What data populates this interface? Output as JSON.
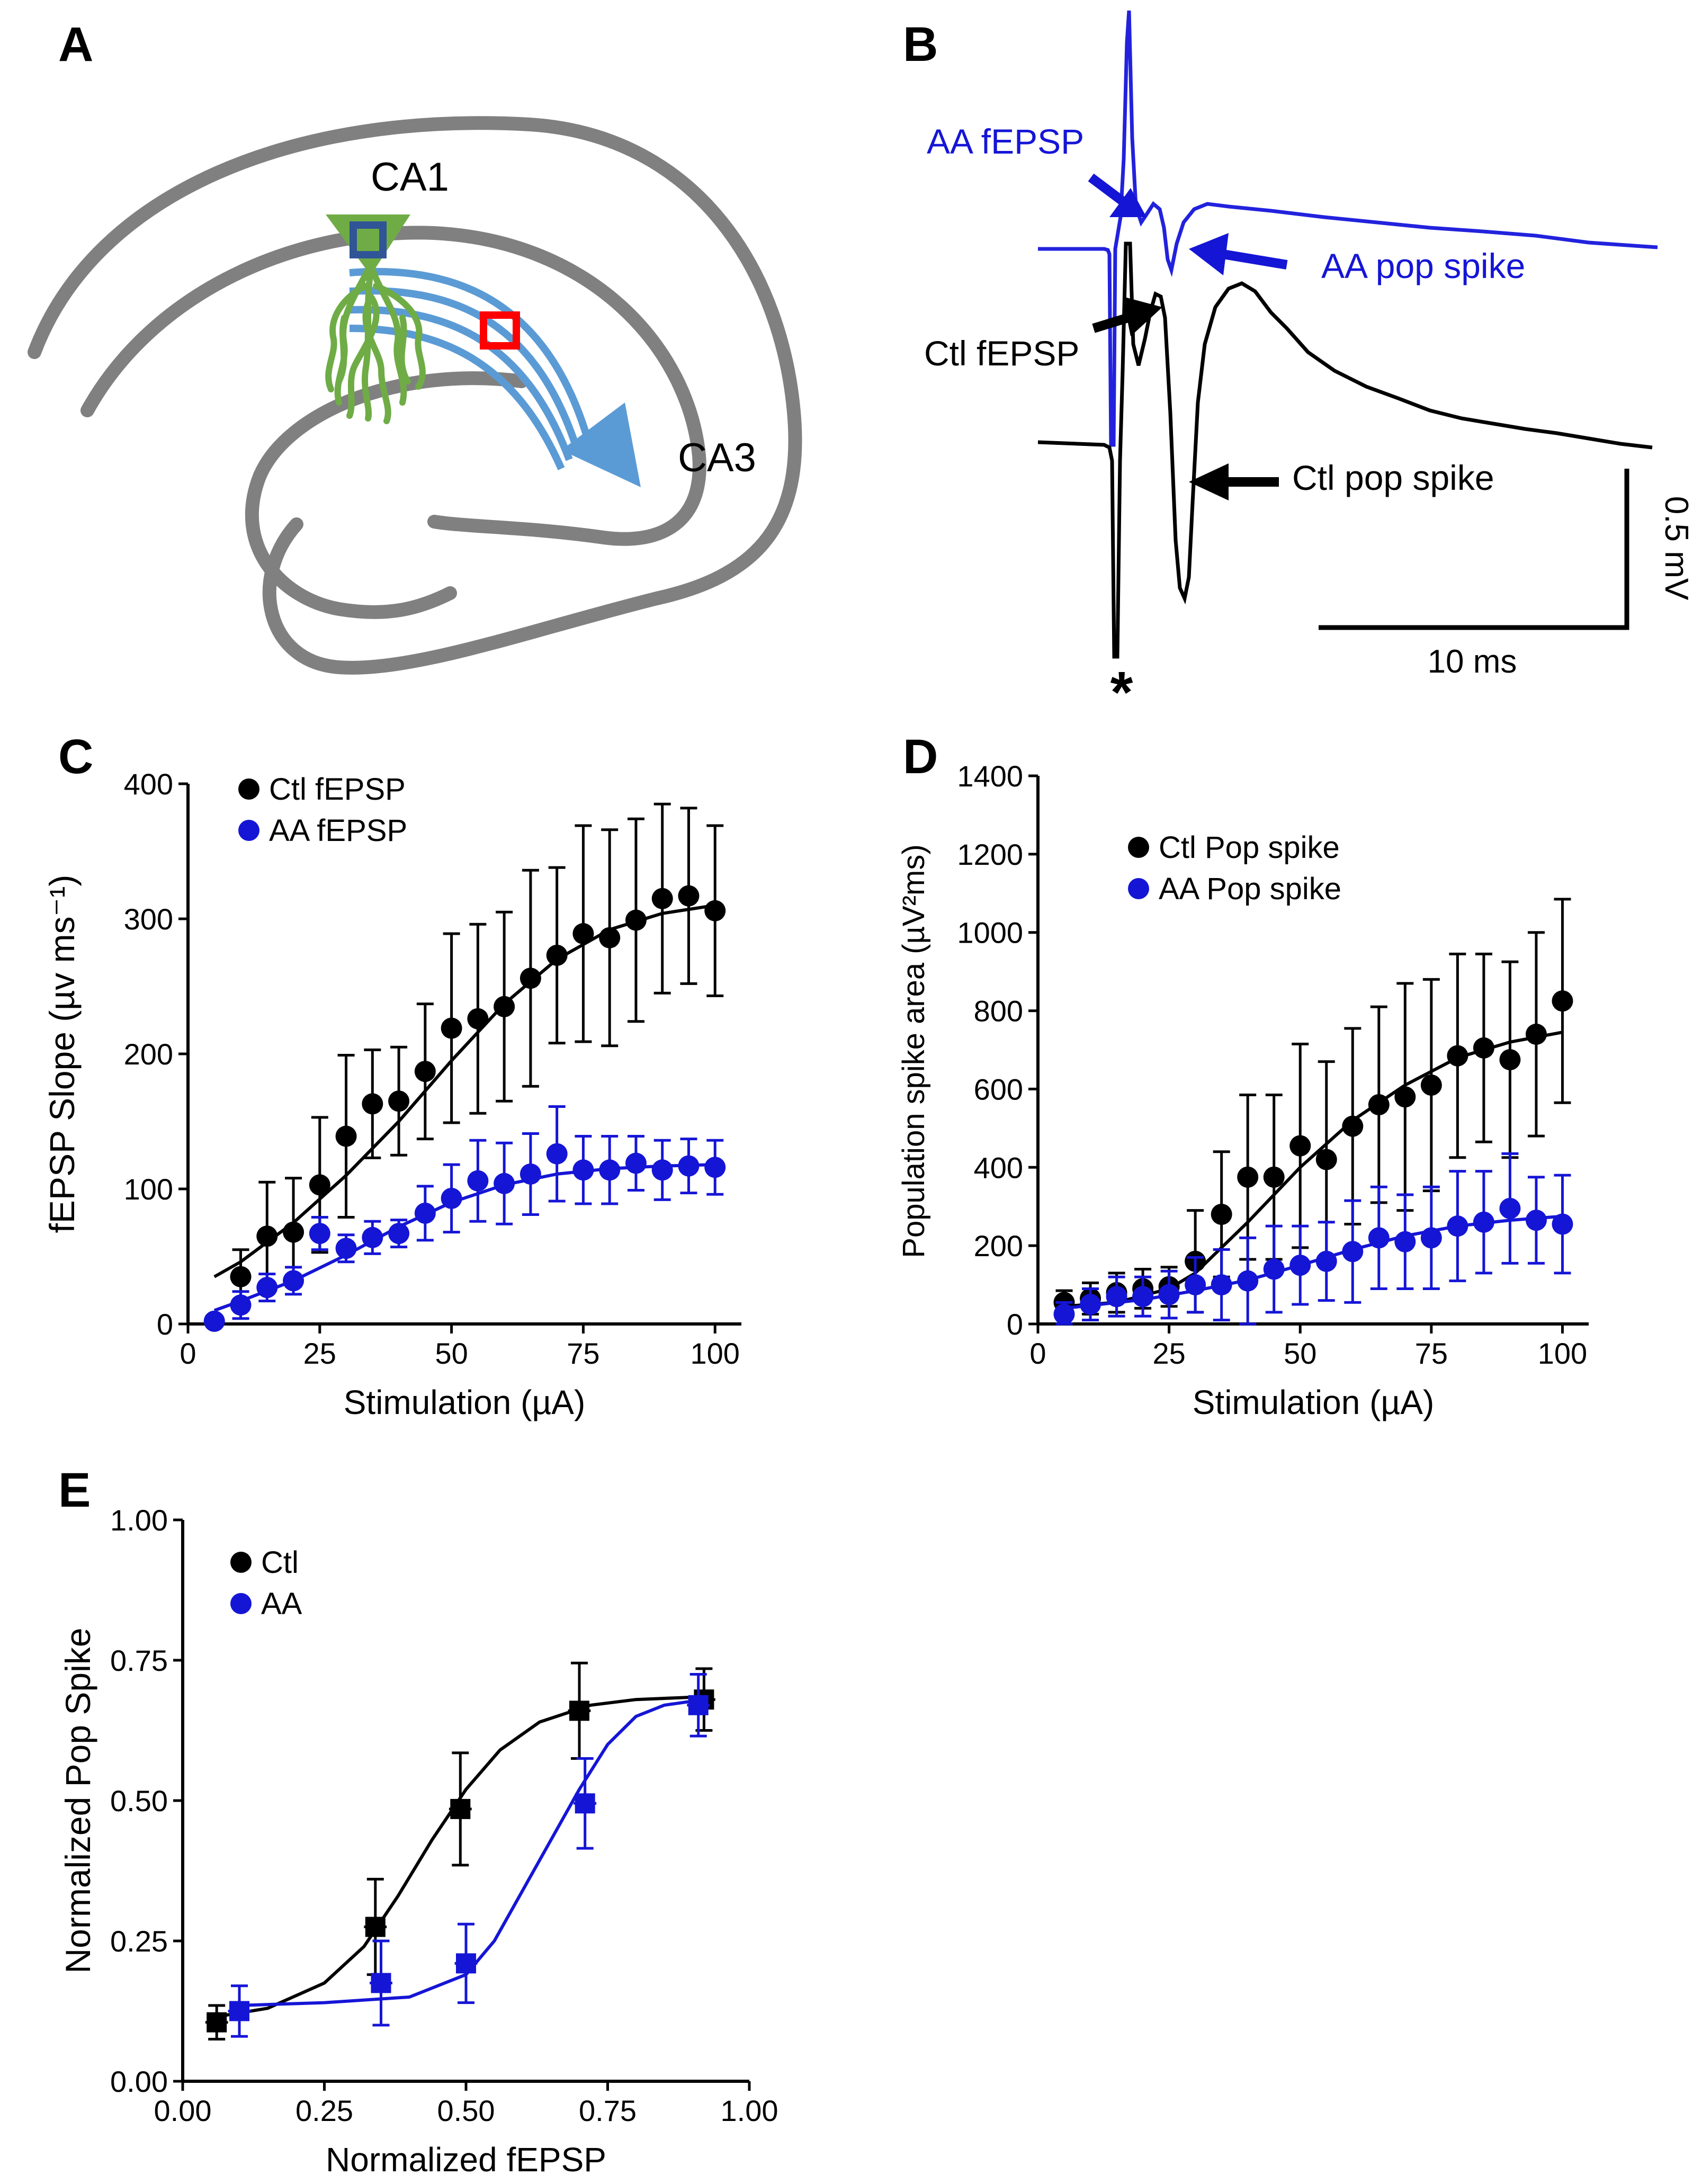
{
  "colors": {
    "ctl": "#000000",
    "aa": "#1515d6",
    "aa_trace": "#2222dd",
    "tissue": "#808080",
    "neuron": "#6fac46",
    "axon": "#5b9bd5",
    "marker_blue": "#2f5597",
    "marker_red": "#ff0000"
  },
  "panels": {
    "A": {
      "letter": "A",
      "ca1": "CA1",
      "ca3": "CA3"
    },
    "B": {
      "letter": "B",
      "aa_fepsp": "AA fEPSP",
      "aa_pop": "AA pop spike",
      "ctl_fepsp": "Ctl fEPSP",
      "ctl_pop": "Ctl pop spike",
      "scale_v": "0.5 mV",
      "scale_t": "10 ms",
      "stim": "*"
    },
    "C": {
      "letter": "C"
    },
    "D": {
      "letter": "D"
    },
    "E": {
      "letter": "E"
    }
  },
  "chart_data": [
    {
      "id": "C",
      "type": "scatter",
      "xlabel": "Stimulation (µA)",
      "ylabel": "fEPSP Slope (µv ms⁻¹)",
      "xlim": [
        0,
        105
      ],
      "ylim": [
        0,
        400
      ],
      "xticks": [
        0,
        25,
        50,
        75,
        100
      ],
      "yticks": [
        0,
        100,
        200,
        300,
        400
      ],
      "legend": "top-left",
      "series": [
        {
          "name": "Ctl fEPSP",
          "color": "#000000",
          "marker": "circle",
          "x": [
            5,
            10,
            15,
            20,
            25,
            30,
            35,
            40,
            45,
            50,
            55,
            60,
            65,
            70,
            75,
            80,
            85,
            90,
            95,
            100
          ],
          "y": [
            2,
            35,
            65,
            68,
            103,
            139,
            163,
            165,
            187,
            219,
            226,
            235,
            256,
            273,
            289,
            286,
            299,
            315,
            317,
            306
          ],
          "err": [
            3,
            20,
            40,
            40,
            50,
            60,
            40,
            40,
            50,
            70,
            70,
            70,
            80,
            65,
            80,
            80,
            75,
            70,
            65,
            63
          ],
          "fit": [
            [
              5,
              35
            ],
            [
              10,
              46
            ],
            [
              20,
              75
            ],
            [
              30,
              110
            ],
            [
              40,
              150
            ],
            [
              50,
              195
            ],
            [
              60,
              237
            ],
            [
              70,
              270
            ],
            [
              80,
              292
            ],
            [
              90,
              304
            ],
            [
              100,
              310
            ]
          ]
        },
        {
          "name": "AA fEPSP",
          "color": "#1515d6",
          "marker": "circle",
          "x": [
            5,
            10,
            15,
            20,
            25,
            30,
            35,
            40,
            45,
            50,
            55,
            60,
            65,
            70,
            75,
            80,
            85,
            90,
            95,
            100
          ],
          "y": [
            2,
            14,
            27,
            32,
            67,
            56,
            64,
            67,
            82,
            93,
            106,
            104,
            111,
            126,
            114,
            114,
            119,
            114,
            117,
            116
          ],
          "err": [
            3,
            10,
            10,
            10,
            12,
            10,
            12,
            10,
            20,
            25,
            30,
            30,
            30,
            35,
            25,
            25,
            20,
            22,
            20,
            20
          ],
          "fit": [
            [
              5,
              10
            ],
            [
              10,
              17
            ],
            [
              20,
              32
            ],
            [
              30,
              51
            ],
            [
              40,
              72
            ],
            [
              50,
              90
            ],
            [
              60,
              103
            ],
            [
              70,
              111
            ],
            [
              80,
              115
            ],
            [
              90,
              117
            ],
            [
              100,
              118
            ]
          ]
        }
      ]
    },
    {
      "id": "D",
      "type": "scatter",
      "xlabel": "Stimulation (µA)",
      "ylabel": "Population spike area (µV²ms)",
      "xlim": [
        0,
        105
      ],
      "ylim": [
        0,
        1400
      ],
      "xticks": [
        0,
        25,
        50,
        75,
        100
      ],
      "yticks": [
        0,
        200,
        400,
        600,
        800,
        1000,
        1200,
        1400
      ],
      "legend": "top-left",
      "series": [
        {
          "name": "Ctl Pop spike",
          "color": "#000000",
          "marker": "circle",
          "x": [
            5,
            10,
            15,
            20,
            25,
            30,
            35,
            40,
            45,
            50,
            55,
            60,
            65,
            70,
            75,
            80,
            85,
            90,
            95,
            100
          ],
          "y": [
            55,
            65,
            80,
            90,
            95,
            160,
            280,
            375,
            375,
            455,
            420,
            505,
            560,
            580,
            610,
            685,
            705,
            675,
            740,
            825
          ],
          "err": [
            30,
            40,
            50,
            50,
            50,
            130,
            160,
            210,
            210,
            260,
            250,
            250,
            250,
            290,
            270,
            260,
            240,
            250,
            260,
            260
          ],
          "fit": [
            [
              5,
              45
            ],
            [
              15,
              55
            ],
            [
              25,
              90
            ],
            [
              30,
              130
            ],
            [
              40,
              260
            ],
            [
              50,
              400
            ],
            [
              60,
              520
            ],
            [
              70,
              610
            ],
            [
              80,
              680
            ],
            [
              90,
              720
            ],
            [
              100,
              745
            ]
          ]
        },
        {
          "name": "AA Pop spike",
          "color": "#1515d6",
          "marker": "circle",
          "x": [
            5,
            10,
            15,
            20,
            25,
            30,
            35,
            40,
            45,
            50,
            55,
            60,
            65,
            70,
            75,
            80,
            85,
            90,
            95,
            100
          ],
          "y": [
            25,
            50,
            70,
            70,
            75,
            100,
            100,
            110,
            140,
            150,
            160,
            185,
            220,
            210,
            220,
            250,
            260,
            295,
            265,
            255
          ],
          "err": [
            30,
            40,
            50,
            50,
            60,
            70,
            90,
            110,
            110,
            100,
            100,
            130,
            130,
            120,
            130,
            140,
            130,
            140,
            110,
            125
          ],
          "fit": [
            [
              5,
              40
            ],
            [
              20,
              62
            ],
            [
              30,
              85
            ],
            [
              40,
              112
            ],
            [
              50,
              150
            ],
            [
              60,
              190
            ],
            [
              70,
              225
            ],
            [
              80,
              250
            ],
            [
              90,
              265
            ],
            [
              100,
              275
            ]
          ]
        }
      ]
    },
    {
      "id": "E",
      "type": "scatter",
      "xlabel": "Normalized fEPSP",
      "ylabel": "Normalized Pop Spike",
      "xlim": [
        0,
        1
      ],
      "ylim": [
        0,
        1
      ],
      "xticks": [
        0,
        0.25,
        0.5,
        0.75,
        1
      ],
      "xticklabels": [
        "0.00",
        "0.25",
        "0.50",
        "0.75",
        "1.00"
      ],
      "yticks": [
        0,
        0.25,
        0.5,
        0.75,
        1
      ],
      "yticklabels": [
        "0.00",
        "0.25",
        "0.50",
        "0.75",
        "1.00"
      ],
      "legend": "top-left",
      "series": [
        {
          "name": "Ctl",
          "color": "#000000",
          "marker": "square",
          "x": [
            0.06,
            0.34,
            0.49,
            0.7,
            0.92
          ],
          "y": [
            0.105,
            0.275,
            0.485,
            0.66,
            0.68
          ],
          "err": [
            0.03,
            0.085,
            0.1,
            0.085,
            0.055
          ],
          "xerr": [
            0.02,
            0.02,
            0.02,
            0.02,
            0.02
          ],
          "fit": [
            [
              0.06,
              0.115
            ],
            [
              0.15,
              0.13
            ],
            [
              0.25,
              0.175
            ],
            [
              0.32,
              0.24
            ],
            [
              0.38,
              0.33
            ],
            [
              0.44,
              0.43
            ],
            [
              0.5,
              0.52
            ],
            [
              0.56,
              0.59
            ],
            [
              0.63,
              0.64
            ],
            [
              0.72,
              0.67
            ],
            [
              0.8,
              0.68
            ],
            [
              0.92,
              0.685
            ]
          ]
        },
        {
          "name": "AA",
          "color": "#1515d6",
          "marker": "square",
          "x": [
            0.1,
            0.35,
            0.5,
            0.71,
            0.91
          ],
          "y": [
            0.125,
            0.175,
            0.21,
            0.495,
            0.67
          ],
          "err": [
            0.045,
            0.075,
            0.07,
            0.08,
            0.055
          ],
          "xerr": [
            0.02,
            0.02,
            0.02,
            0.02,
            0.02
          ],
          "fit": [
            [
              0.1,
              0.135
            ],
            [
              0.25,
              0.14
            ],
            [
              0.4,
              0.15
            ],
            [
              0.5,
              0.19
            ],
            [
              0.55,
              0.25
            ],
            [
              0.6,
              0.34
            ],
            [
              0.65,
              0.43
            ],
            [
              0.7,
              0.52
            ],
            [
              0.75,
              0.6
            ],
            [
              0.8,
              0.65
            ],
            [
              0.85,
              0.67
            ],
            [
              0.92,
              0.68
            ]
          ]
        }
      ]
    }
  ]
}
